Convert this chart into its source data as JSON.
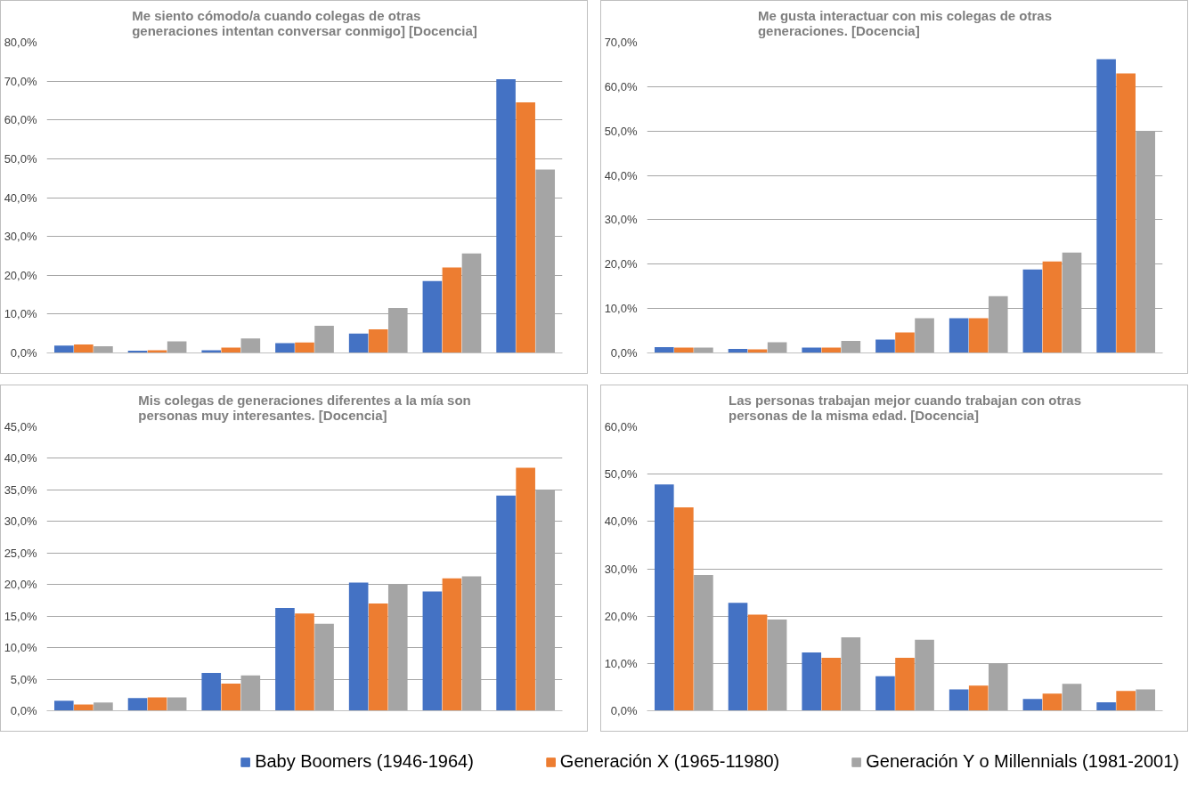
{
  "chart_data": [
    {
      "type": "bar",
      "title": "Me siento cómodo/a cuando colegas de otras\ngeneraciones intentan conversar conmigo] [Docencia]",
      "categories": [
        null,
        null,
        null,
        null,
        null,
        null,
        null
      ],
      "tick_labels": "y",
      "grid": "y",
      "ylim": [
        0,
        80
      ],
      "yticks": [
        {
          "value": 0,
          "label": "0,0%"
        },
        {
          "value": 10,
          "label": "10,0%"
        },
        {
          "value": 20,
          "label": "20,0%"
        },
        {
          "value": 30,
          "label": "30,0%"
        },
        {
          "value": 40,
          "label": "40,0%"
        },
        {
          "value": 50,
          "label": "50,0%"
        },
        {
          "value": 60,
          "label": "60,0%"
        },
        {
          "value": 70,
          "label": "70,0%"
        },
        {
          "value": 80,
          "label": "80,0%"
        }
      ],
      "series": [
        {
          "color": "#4472c4",
          "values": [
            1.9,
            0.6,
            0.7,
            2.5,
            5.0,
            18.5,
            70.5
          ]
        },
        {
          "color": "#ed7d31",
          "values": [
            2.2,
            0.7,
            1.4,
            2.7,
            6.1,
            22.0,
            64.5
          ]
        },
        {
          "color": "#a5a5a5",
          "values": [
            1.7,
            3.0,
            3.7,
            7.0,
            11.6,
            25.6,
            47.2
          ]
        }
      ]
    },
    {
      "type": "bar",
      "title": "Me gusta interactuar con mis colegas de otras\ngeneraciones. [Docencia]",
      "categories": [
        null,
        null,
        null,
        null,
        null,
        null,
        null
      ],
      "tick_labels": "y",
      "grid": "y",
      "ylim": [
        0,
        70
      ],
      "yticks": [
        {
          "value": 0,
          "label": "0,0%"
        },
        {
          "value": 10,
          "label": "10,0%"
        },
        {
          "value": 20,
          "label": "20,0%"
        },
        {
          "value": 30,
          "label": "30,0%"
        },
        {
          "value": 40,
          "label": "40,0%"
        },
        {
          "value": 50,
          "label": "50,0%"
        },
        {
          "value": 60,
          "label": "60,0%"
        },
        {
          "value": 70,
          "label": "70,0%"
        }
      ],
      "series": [
        {
          "color": "#4472c4",
          "values": [
            1.3,
            0.9,
            1.2,
            3.0,
            7.8,
            18.8,
            66.2
          ]
        },
        {
          "color": "#ed7d31",
          "values": [
            1.2,
            0.8,
            1.2,
            4.6,
            7.8,
            20.6,
            63.0
          ]
        },
        {
          "color": "#a5a5a5",
          "values": [
            1.2,
            2.4,
            2.7,
            7.8,
            12.8,
            22.6,
            50.0
          ]
        }
      ]
    },
    {
      "type": "bar",
      "title": "Mis colegas de generaciones diferentes a la mía son\npersonas muy interesantes. [Docencia]",
      "categories": [
        null,
        null,
        null,
        null,
        null,
        null,
        null
      ],
      "tick_labels": "y",
      "grid": "y",
      "ylim": [
        0,
        45
      ],
      "yticks": [
        {
          "value": 0,
          "label": "0,0%"
        },
        {
          "value": 5,
          "label": "5,0%"
        },
        {
          "value": 10,
          "label": "10,0%"
        },
        {
          "value": 15,
          "label": "15,0%"
        },
        {
          "value": 20,
          "label": "20,0%"
        },
        {
          "value": 25,
          "label": "25,0%"
        },
        {
          "value": 30,
          "label": "30,0%"
        },
        {
          "value": 35,
          "label": "35,0%"
        },
        {
          "value": 40,
          "label": "40,0%"
        },
        {
          "value": 45,
          "label": "45,0%"
        }
      ],
      "series": [
        {
          "color": "#4472c4",
          "values": [
            1.6,
            2.0,
            6.0,
            16.3,
            20.3,
            18.9,
            34.1
          ]
        },
        {
          "color": "#ed7d31",
          "values": [
            1.0,
            2.1,
            4.3,
            15.4,
            17.0,
            21.0,
            38.5
          ]
        },
        {
          "color": "#a5a5a5",
          "values": [
            1.3,
            2.1,
            5.6,
            13.8,
            20.1,
            21.3,
            35.0
          ]
        }
      ]
    },
    {
      "type": "bar",
      "title": "Las personas trabajan mejor cuando trabajan con otras\npersonas de la misma edad. [Docencia]",
      "categories": [
        null,
        null,
        null,
        null,
        null,
        null,
        null
      ],
      "tick_labels": "y",
      "grid": "y",
      "ylim": [
        0,
        60
      ],
      "legend": "bottom",
      "yticks": [
        {
          "value": 0,
          "label": "0,0%"
        },
        {
          "value": 10,
          "label": "10,0%"
        },
        {
          "value": 20,
          "label": "20,0%"
        },
        {
          "value": 30,
          "label": "30,0%"
        },
        {
          "value": 40,
          "label": "40,0%"
        },
        {
          "value": 50,
          "label": "50,0%"
        },
        {
          "value": 60,
          "label": "60,0%"
        }
      ],
      "series": [
        {
          "name": "Baby Boomers (1946-1964)",
          "color": "#4472c4",
          "values": [
            47.8,
            22.8,
            12.3,
            7.3,
            4.5,
            2.5,
            1.8
          ]
        },
        {
          "name": "Generación X (1965-11980)",
          "color": "#ed7d31",
          "values": [
            43.0,
            20.3,
            11.2,
            11.2,
            5.3,
            3.6,
            4.2
          ]
        },
        {
          "name": "Generación Y o Millennials (1981-2001)",
          "color": "#a5a5a5",
          "values": [
            28.7,
            19.3,
            15.5,
            15.0,
            9.9,
            5.7,
            4.5
          ]
        }
      ]
    }
  ]
}
